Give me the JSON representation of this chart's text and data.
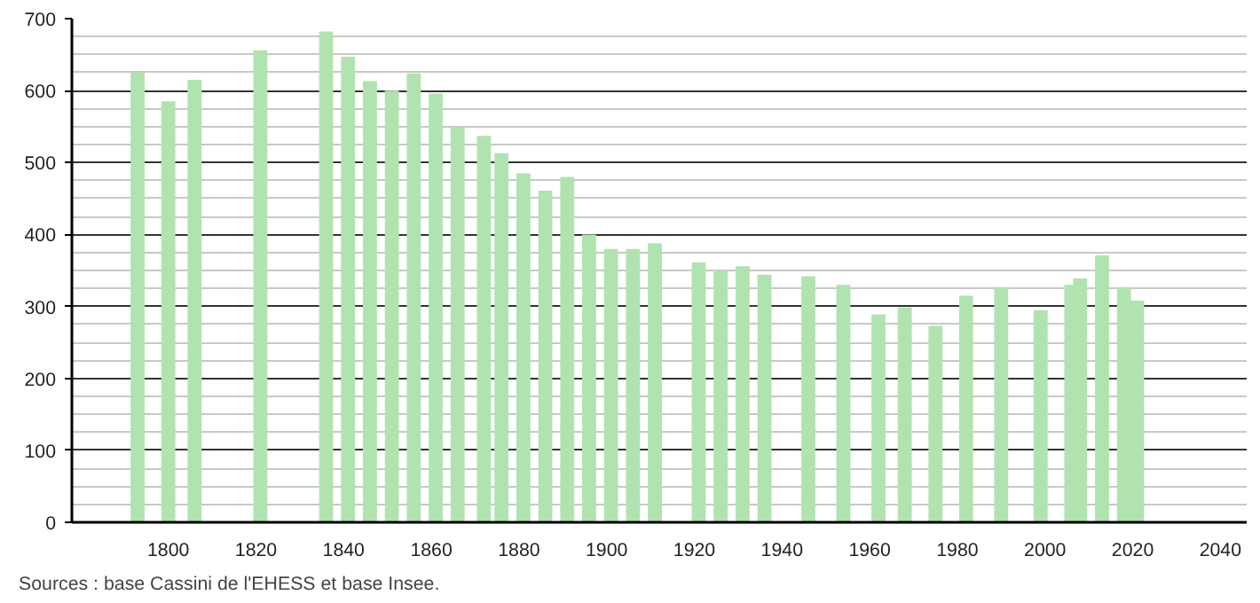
{
  "chart_data": {
    "type": "bar",
    "x": [
      1793,
      1800,
      1806,
      1821,
      1836,
      1841,
      1846,
      1851,
      1856,
      1861,
      1866,
      1872,
      1876,
      1881,
      1886,
      1891,
      1896,
      1901,
      1906,
      1911,
      1921,
      1926,
      1931,
      1936,
      1946,
      1954,
      1962,
      1968,
      1975,
      1982,
      1990,
      1999,
      2006,
      2008,
      2013,
      2018,
      2021
    ],
    "values": [
      625,
      585,
      615,
      656,
      682,
      647,
      613,
      600,
      624,
      596,
      549,
      537,
      513,
      485,
      461,
      480,
      400,
      380,
      380,
      388,
      361,
      350,
      356,
      344,
      342,
      330,
      289,
      299,
      273,
      315,
      327,
      295,
      330,
      339,
      371,
      327,
      308
    ],
    "color": "#b0e3b0",
    "xlim": [
      1778,
      2046
    ],
    "xticks": [
      1800,
      1820,
      1840,
      1860,
      1880,
      1900,
      1920,
      1940,
      1960,
      1980,
      2000,
      2020,
      2040
    ],
    "ylim": [
      0,
      700
    ],
    "yticks": [
      0,
      100,
      200,
      300,
      400,
      500,
      600,
      700
    ],
    "grid": "y",
    "annotations": [
      "Sources : base Cassini de l'EHESS et base Insee."
    ]
  }
}
